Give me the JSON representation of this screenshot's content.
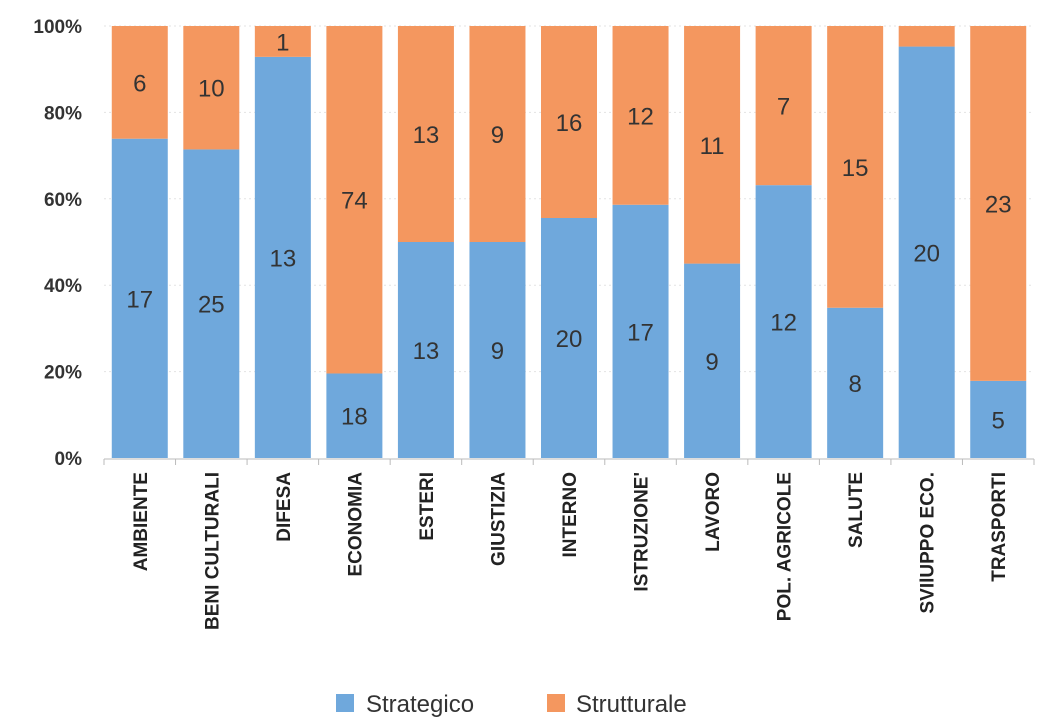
{
  "chart_data": {
    "type": "bar",
    "stacked": true,
    "percent": true,
    "categories": [
      "AMBIENTE",
      "BENI CULTURALI",
      "DIFESA",
      "ECONOMIA",
      "ESTERI",
      "GIUSTIZIA",
      "INTERNO",
      "ISTRUZIONE'",
      "LAVORO",
      "POL. AGRICOLE",
      "SALUTE",
      "SVIlUPPO ECO.",
      "TRASPORTI"
    ],
    "series": [
      {
        "name": "Strategico",
        "color": "#6fa8dc",
        "values": [
          17,
          25,
          13,
          18,
          13,
          9,
          20,
          17,
          9,
          12,
          8,
          20,
          5
        ]
      },
      {
        "name": "Strutturale",
        "color": "#f4975f",
        "values": [
          6,
          10,
          1,
          74,
          13,
          9,
          16,
          12,
          11,
          7,
          15,
          1,
          23
        ]
      }
    ],
    "series_labels": [
      [
        "17",
        "25",
        "13",
        "18",
        "13",
        "9",
        "20",
        "17",
        "9",
        "12",
        "8",
        "20",
        "5"
      ],
      [
        "6",
        "10",
        "1",
        "74",
        "13",
        "9",
        "16",
        "12",
        "11",
        "7",
        "15",
        "",
        "23"
      ]
    ],
    "yticks": [
      "0%",
      "20%",
      "40%",
      "60%",
      "80%",
      "100%"
    ],
    "ylim": [
      0,
      100
    ],
    "grid": true,
    "legend": "bottom"
  }
}
